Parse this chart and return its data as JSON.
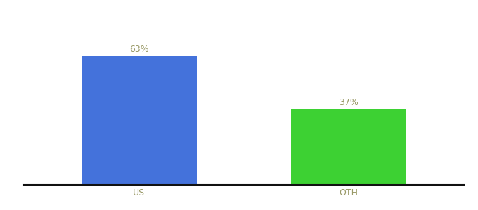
{
  "categories": [
    "US",
    "OTH"
  ],
  "values": [
    63,
    37
  ],
  "bar_colors": [
    "#4472DB",
    "#3DD133"
  ],
  "label_color": "#999966",
  "value_labels": [
    "63%",
    "37%"
  ],
  "xlabel_fontsize": 9,
  "value_fontsize": 9,
  "background_color": "#ffffff",
  "ylim": [
    0,
    80
  ],
  "bar_width": 0.55,
  "bar_positions": [
    0.0,
    1.0
  ],
  "xlim": [
    -0.55,
    1.55
  ]
}
